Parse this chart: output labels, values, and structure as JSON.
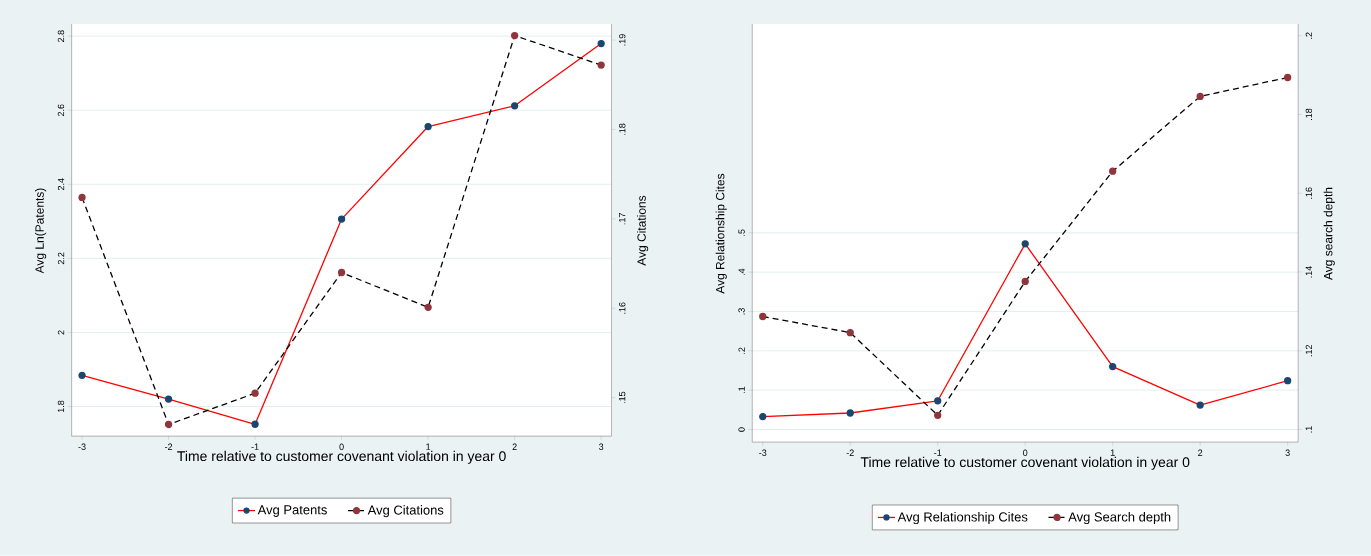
{
  "chart_data": [
    {
      "type": "line",
      "xlabel": "Time relative to customer covenant violation in year 0",
      "ylabel": "Avg Ln(Patents)",
      "y2label": "Avg Citations",
      "x": [
        -3,
        -2,
        -1,
        0,
        1,
        2,
        3
      ],
      "xlim": [
        -3.12,
        3.12
      ],
      "xticks": [
        -3,
        -2,
        -1,
        0,
        1,
        2,
        3
      ],
      "ylim": [
        1.72,
        2.833
      ],
      "yticks": [
        1.8,
        2,
        2.2,
        2.4,
        2.6,
        2.8
      ],
      "y2lim": [
        0.1457,
        0.1918
      ],
      "y2ticks": [
        {
          "value": 0.15,
          "label": ".15"
        },
        {
          "value": 0.16,
          "label": ".16"
        },
        {
          "value": 0.17,
          "label": ".17"
        },
        {
          "value": 0.18,
          "label": ".18"
        },
        {
          "value": 0.19,
          "label": ".19"
        }
      ],
      "series": [
        {
          "name": "Avg Patents",
          "color": "#ff0000",
          "line_style": "solid",
          "values": [
            1.884,
            1.82,
            1.752,
            2.306,
            2.556,
            2.612,
            2.78
          ]
        },
        {
          "name": "Avg Citations",
          "color": "#000000",
          "line_style": "dashed",
          "axis": "y2",
          "values": [
            0.1724,
            0.147,
            0.1505,
            0.164,
            0.1601,
            0.1905,
            0.1872
          ]
        }
      ],
      "marker": "circle",
      "grid": "y",
      "legend": "bottom"
    },
    {
      "type": "line",
      "xlabel": "Time relative to customer covenant violation in year 0",
      "ylabel": "Avg Relationship Cites",
      "y2label": "Avg search depth",
      "x": [
        -3,
        -2,
        -1,
        0,
        1,
        2,
        3
      ],
      "xlim": [
        -3.12,
        3.12
      ],
      "xticks": [
        -3,
        -2,
        -1,
        0,
        1,
        2,
        3
      ],
      "ylim": [
        -0.032,
        1.031
      ],
      "yticks": [
        0,
        {
          "value": 0.1,
          "label": ".1"
        },
        {
          "value": 0.2,
          "label": ".2"
        },
        {
          "value": 0.3,
          "label": ".3"
        },
        {
          "value": 0.4,
          "label": ".4"
        },
        {
          "value": 0.5,
          "label": ".5"
        }
      ],
      "y2lim": [
        0.0968,
        0.203
      ],
      "y2ticks": [
        {
          "value": 0.1,
          "label": ".1"
        },
        {
          "value": 0.12,
          "label": ".12"
        },
        {
          "value": 0.14,
          "label": ".14"
        },
        {
          "value": 0.16,
          "label": ".16"
        },
        {
          "value": 0.18,
          "label": ".18"
        },
        {
          "value": 0.2,
          "label": ".2"
        }
      ],
      "series": [
        {
          "name": "Avg Relationship Cites",
          "color": "#ff0000",
          "line_style": "solid",
          "values": [
            0.033,
            0.042,
            0.073,
            0.472,
            0.16,
            0.062,
            0.124
          ]
        },
        {
          "name": "Avg Search depth",
          "color": "#000000",
          "line_style": "dashed",
          "axis": "y2",
          "values": [
            0.1287,
            0.1246,
            0.1036,
            0.1376,
            0.1656,
            0.1846,
            0.1894
          ]
        }
      ],
      "marker": "circle",
      "grid": "y",
      "legend": "bottom"
    }
  ]
}
